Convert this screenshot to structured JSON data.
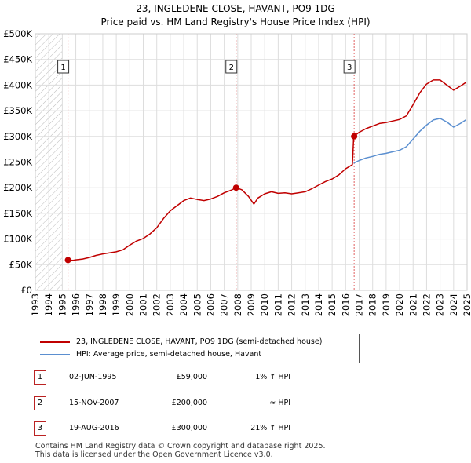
{
  "chart_data": {
    "type": "line",
    "title": "23, INGLEDENE CLOSE, HAVANT, PO9 1DG",
    "subtitle": "Price paid vs. HM Land Registry's House Price Index (HPI)",
    "xlabel": "",
    "ylabel": "",
    "xlim": [
      1993,
      2025
    ],
    "ylim": [
      0,
      500000
    ],
    "x_ticks": [
      1993,
      1994,
      1995,
      1996,
      1997,
      1998,
      1999,
      2000,
      2001,
      2002,
      2003,
      2004,
      2005,
      2006,
      2007,
      2008,
      2009,
      2010,
      2011,
      2012,
      2013,
      2014,
      2015,
      2016,
      2017,
      2018,
      2019,
      2020,
      2021,
      2022,
      2023,
      2024,
      2025
    ],
    "y_ticks": [
      {
        "value": 0,
        "label": "£0"
      },
      {
        "value": 50000,
        "label": "£50K"
      },
      {
        "value": 100000,
        "label": "£100K"
      },
      {
        "value": 150000,
        "label": "£150K"
      },
      {
        "value": 200000,
        "label": "£200K"
      },
      {
        "value": 250000,
        "label": "£250K"
      },
      {
        "value": 300000,
        "label": "£300K"
      },
      {
        "value": 350000,
        "label": "£350K"
      },
      {
        "value": 400000,
        "label": "£400K"
      },
      {
        "value": 450000,
        "label": "£450K"
      },
      {
        "value": 500000,
        "label": "£500K"
      }
    ],
    "grid": true,
    "hatched_region": [
      1993,
      1995.0
    ],
    "series": [
      {
        "name": "23, INGLEDENE CLOSE, HAVANT, PO9 1DG (semi-detached house)",
        "color": "#c00000",
        "points": [
          [
            1995.42,
            59000
          ],
          [
            1995.8,
            58500
          ],
          [
            1996.0,
            59500
          ],
          [
            1996.5,
            61000
          ],
          [
            1997.0,
            64000
          ],
          [
            1997.5,
            68000
          ],
          [
            1998.0,
            71000
          ],
          [
            1998.5,
            73000
          ],
          [
            1999.0,
            75000
          ],
          [
            1999.5,
            79000
          ],
          [
            2000.0,
            88000
          ],
          [
            2000.5,
            96000
          ],
          [
            2001.0,
            101000
          ],
          [
            2001.5,
            110000
          ],
          [
            2002.0,
            122000
          ],
          [
            2002.5,
            140000
          ],
          [
            2003.0,
            155000
          ],
          [
            2003.5,
            165000
          ],
          [
            2004.0,
            175000
          ],
          [
            2004.5,
            180000
          ],
          [
            2005.0,
            177000
          ],
          [
            2005.5,
            175000
          ],
          [
            2006.0,
            178000
          ],
          [
            2006.5,
            183000
          ],
          [
            2007.0,
            190000
          ],
          [
            2007.5,
            195000
          ],
          [
            2007.88,
            200000
          ],
          [
            2008.3,
            196000
          ],
          [
            2008.8,
            183000
          ],
          [
            2009.2,
            168000
          ],
          [
            2009.5,
            180000
          ],
          [
            2010.0,
            188000
          ],
          [
            2010.5,
            192000
          ],
          [
            2011.0,
            189000
          ],
          [
            2011.5,
            190000
          ],
          [
            2012.0,
            188000
          ],
          [
            2012.5,
            190000
          ],
          [
            2013.0,
            192000
          ],
          [
            2013.5,
            198000
          ],
          [
            2014.0,
            205000
          ],
          [
            2014.5,
            212000
          ],
          [
            2015.0,
            217000
          ],
          [
            2015.5,
            225000
          ],
          [
            2016.0,
            237000
          ],
          [
            2016.5,
            245000
          ],
          [
            2016.6,
            300000
          ],
          [
            2017.0,
            308000
          ],
          [
            2017.5,
            315000
          ],
          [
            2018.0,
            320000
          ],
          [
            2018.5,
            325000
          ],
          [
            2019.0,
            327000
          ],
          [
            2019.5,
            330000
          ],
          [
            2020.0,
            333000
          ],
          [
            2020.5,
            340000
          ],
          [
            2021.0,
            362000
          ],
          [
            2021.5,
            385000
          ],
          [
            2022.0,
            402000
          ],
          [
            2022.5,
            410000
          ],
          [
            2023.0,
            410000
          ],
          [
            2023.5,
            400000
          ],
          [
            2024.0,
            390000
          ],
          [
            2024.5,
            398000
          ],
          [
            2024.9,
            405000
          ]
        ]
      },
      {
        "name": "HPI: Average price, semi-detached house, Havant",
        "color": "#5b8fd0",
        "points": [
          [
            2016.6,
            248000
          ],
          [
            2017.0,
            253000
          ],
          [
            2017.5,
            258000
          ],
          [
            2018.0,
            261000
          ],
          [
            2018.5,
            265000
          ],
          [
            2019.0,
            267000
          ],
          [
            2019.5,
            270000
          ],
          [
            2020.0,
            273000
          ],
          [
            2020.5,
            280000
          ],
          [
            2021.0,
            295000
          ],
          [
            2021.5,
            310000
          ],
          [
            2022.0,
            322000
          ],
          [
            2022.5,
            332000
          ],
          [
            2023.0,
            335000
          ],
          [
            2023.5,
            328000
          ],
          [
            2024.0,
            318000
          ],
          [
            2024.5,
            325000
          ],
          [
            2024.9,
            332000
          ]
        ]
      }
    ],
    "markers": [
      {
        "label": "1",
        "x": 1995.42,
        "y": 59000
      },
      {
        "label": "2",
        "x": 2007.88,
        "y": 200000
      },
      {
        "label": "3",
        "x": 2016.63,
        "y": 300000
      }
    ]
  },
  "legend": {
    "property_label": "23, INGLEDENE CLOSE, HAVANT, PO9 1DG (semi-detached house)",
    "property_color": "#c00000",
    "hpi_label": "HPI: Average price, semi-detached house, Havant",
    "hpi_color": "#5b8fd0"
  },
  "sales": [
    {
      "num": "1",
      "date": "02-JUN-1995",
      "price": "£59,000",
      "hpi": "1% ↑ HPI"
    },
    {
      "num": "2",
      "date": "15-NOV-2007",
      "price": "£200,000",
      "hpi": "≈ HPI"
    },
    {
      "num": "3",
      "date": "19-AUG-2016",
      "price": "£300,000",
      "hpi": "21% ↑ HPI"
    }
  ],
  "footer": {
    "line1": "Contains HM Land Registry data © Crown copyright and database right 2025.",
    "line2": "This data is licensed under the Open Government Licence v3.0."
  }
}
